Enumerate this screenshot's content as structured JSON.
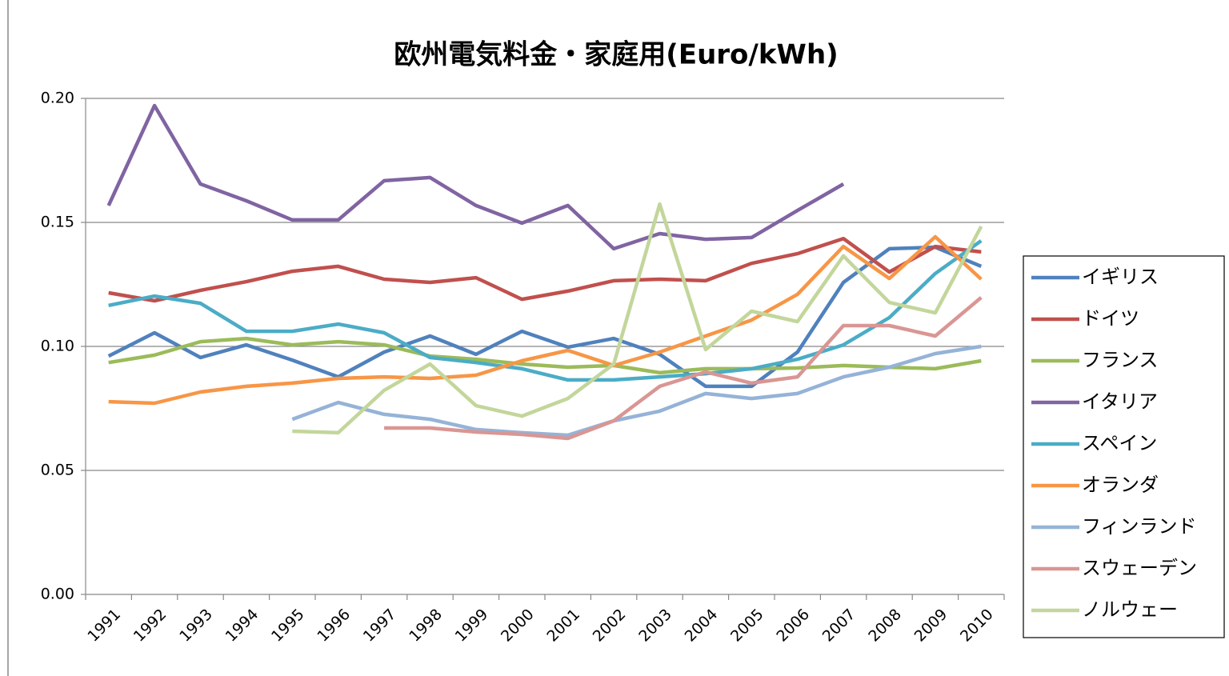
{
  "chart_data": {
    "type": "line",
    "title": "欧州電気料金・家庭用(Euro/kWh)",
    "categories": [
      "1991",
      "1992",
      "1993",
      "1994",
      "1995",
      "1996",
      "1997",
      "1998",
      "1999",
      "2000",
      "2001",
      "2002",
      "2003",
      "2004",
      "2005",
      "2006",
      "2007",
      "2008",
      "2009",
      "2010"
    ],
    "ylim": [
      0,
      0.2
    ],
    "yticks": [
      {
        "value": 0,
        "label": "0.00"
      },
      0.05,
      {
        "value": 0.1,
        "label": "0.10"
      },
      0.15,
      {
        "value": 0.2,
        "label": "0.20"
      }
    ],
    "grid": true,
    "legend": "right",
    "series": [
      {
        "name": "イギリス",
        "color": "#4f81bd",
        "values": [
          0.0961,
          0.1055,
          0.0955,
          0.1006,
          0.0945,
          0.0877,
          0.0977,
          0.1042,
          0.0968,
          0.1061,
          0.0997,
          0.1032,
          0.0968,
          0.0839,
          0.0839,
          0.0977,
          0.1258,
          0.1394,
          0.14,
          0.1323
        ]
      },
      {
        "name": "ドイツ",
        "color": "#c0504d",
        "values": [
          0.1216,
          0.1184,
          0.1226,
          0.1261,
          0.1303,
          0.1323,
          0.1271,
          0.1258,
          0.1277,
          0.119,
          0.1223,
          0.1265,
          0.1271,
          0.1265,
          0.1335,
          0.1374,
          0.1435,
          0.13,
          0.1403,
          0.1381
        ]
      },
      {
        "name": "フランス",
        "color": "#9bbb59",
        "values": [
          0.0935,
          0.0965,
          0.1019,
          0.1032,
          0.1006,
          0.1019,
          0.1006,
          0.0961,
          0.0948,
          0.0929,
          0.0916,
          0.0923,
          0.0894,
          0.091,
          0.091,
          0.0913,
          0.0923,
          0.0916,
          0.091,
          0.0942
        ]
      },
      {
        "name": "イタリア",
        "color": "#8064a2",
        "values": [
          0.1568,
          0.1971,
          0.1655,
          0.1587,
          0.151,
          0.151,
          0.1668,
          0.1681,
          0.1568,
          0.1497,
          0.1568,
          0.1394,
          0.1455,
          0.1432,
          0.1439,
          0.1548,
          0.1655,
          null,
          null,
          null
        ]
      },
      {
        "name": "スペイン",
        "color": "#4bacc6",
        "values": [
          0.1165,
          0.1203,
          0.1174,
          0.1061,
          0.1061,
          0.109,
          0.1055,
          0.0955,
          0.0935,
          0.091,
          0.0865,
          0.0865,
          0.0877,
          0.089,
          0.091,
          0.0948,
          0.1006,
          0.1116,
          0.1294,
          0.1426
        ]
      },
      {
        "name": "オランダ",
        "color": "#f79646",
        "values": [
          0.0777,
          0.0771,
          0.0816,
          0.0839,
          0.0852,
          0.0871,
          0.0877,
          0.0871,
          0.0884,
          0.0942,
          0.0984,
          0.0923,
          0.0977,
          0.1042,
          0.1106,
          0.121,
          0.1403,
          0.1274,
          0.1442,
          0.1271
        ]
      },
      {
        "name": "フィンランド",
        "color": "#95b3d7",
        "values": [
          null,
          null,
          null,
          null,
          0.0706,
          0.0774,
          0.0726,
          0.0706,
          0.0665,
          0.0652,
          0.0642,
          0.07,
          0.0739,
          0.081,
          0.079,
          0.081,
          0.0877,
          0.0916,
          0.0971,
          0.1
        ]
      },
      {
        "name": "スウェーデン",
        "color": "#d99694",
        "values": [
          null,
          null,
          null,
          null,
          null,
          null,
          0.0671,
          0.0671,
          0.0655,
          0.0645,
          0.0629,
          0.07,
          0.0839,
          0.0897,
          0.0852,
          0.0877,
          0.1084,
          0.1084,
          0.1042,
          0.1197
        ]
      },
      {
        "name": "ノルウェー",
        "color": "#c3d69b",
        "values": [
          null,
          null,
          null,
          null,
          0.0658,
          0.0652,
          0.0823,
          0.0929,
          0.0761,
          0.0719,
          0.079,
          0.0929,
          0.1574,
          0.0987,
          0.1142,
          0.11,
          0.1365,
          0.1177,
          0.1135,
          0.1484
        ]
      }
    ]
  }
}
